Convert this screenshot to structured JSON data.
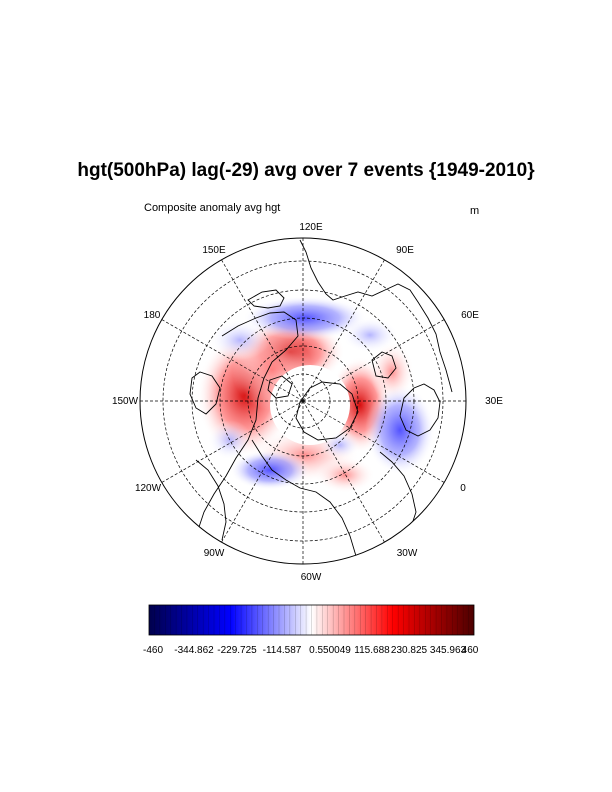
{
  "title": "hgt(500hPa) lag(-29) avg over 7 events {1949-2010}",
  "subtitle": "Composite anomaly avg hgt",
  "units": "m",
  "longitude_labels": [
    "120E",
    "90E",
    "60E",
    "30E",
    "0",
    "30W",
    "60W",
    "90W",
    "120W",
    "150W",
    "180",
    "150E"
  ],
  "colorbar": {
    "labels": [
      "-460",
      "-344.862",
      "-229.725",
      "-114.587",
      "0.550049",
      "115.688",
      "230.825",
      "345.963",
      "460"
    ],
    "min": -460,
    "max": 460,
    "colors": [
      "#00004c",
      "#0000ff",
      "#ffffff",
      "#ff0000",
      "#4c0000"
    ]
  },
  "map": {
    "projection": "north polar stereographic",
    "grid": "dashed"
  }
}
